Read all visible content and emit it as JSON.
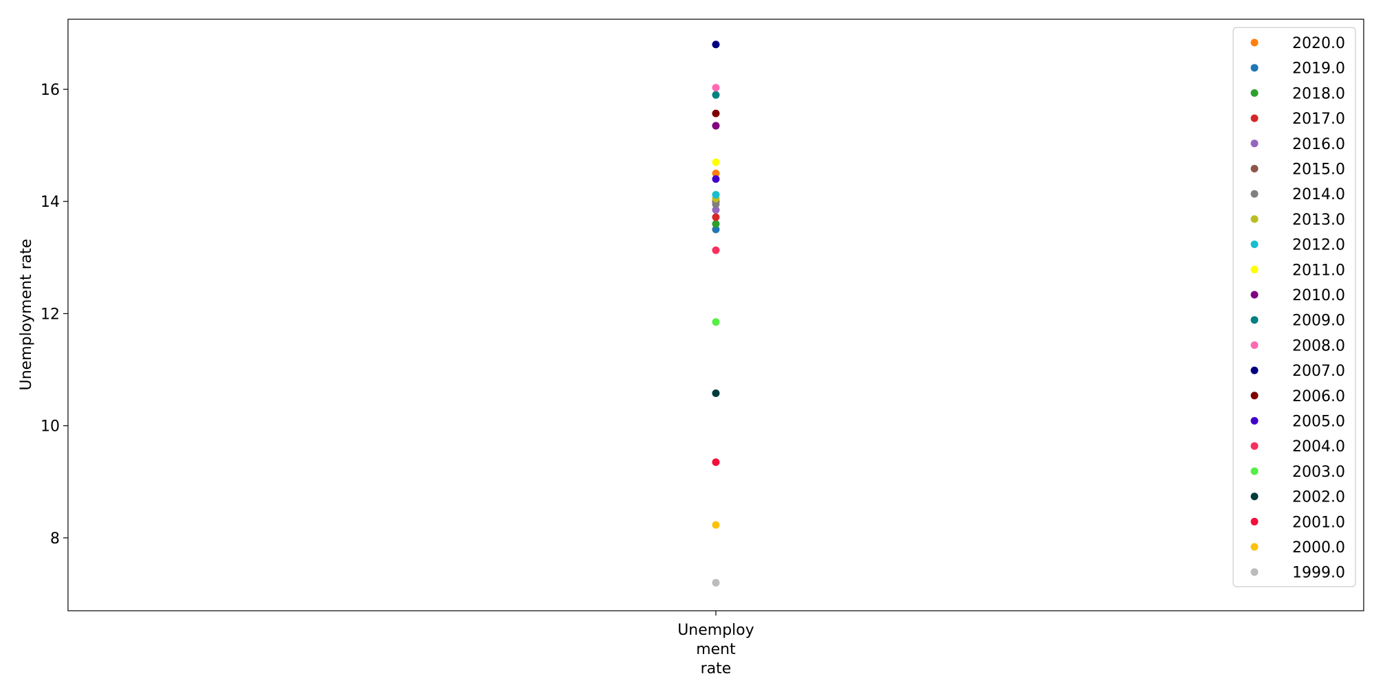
{
  "chart_data": {
    "type": "scatter",
    "title": "",
    "xlabel": "",
    "ylabel": "Unemployment rate",
    "categories": [
      "Unemploy\nment\nrate"
    ],
    "ylim": [
      6.7,
      17.25
    ],
    "yticks": [
      8,
      10,
      12,
      14,
      16
    ],
    "grid": false,
    "legend_position": "top-right",
    "series": [
      {
        "name": "2020.0",
        "color": "#ff7f0e",
        "values": [
          14.5
        ]
      },
      {
        "name": "2019.0",
        "color": "#1f77b4",
        "values": [
          13.5
        ]
      },
      {
        "name": "2018.0",
        "color": "#2ca02c",
        "values": [
          13.6
        ]
      },
      {
        "name": "2017.0",
        "color": "#d62728",
        "values": [
          13.72
        ]
      },
      {
        "name": "2016.0",
        "color": "#9467bd",
        "values": [
          13.85
        ]
      },
      {
        "name": "2015.0",
        "color": "#8c564b",
        "values": [
          14.0
        ]
      },
      {
        "name": "2014.0",
        "color": "#7f7f7f",
        "values": [
          13.95
        ]
      },
      {
        "name": "2013.0",
        "color": "#bcbd22",
        "values": [
          14.05
        ]
      },
      {
        "name": "2012.0",
        "color": "#17becf",
        "values": [
          14.12
        ]
      },
      {
        "name": "2011.0",
        "color": "#ffff00",
        "values": [
          14.7
        ]
      },
      {
        "name": "2010.0",
        "color": "#800080",
        "values": [
          15.35
        ]
      },
      {
        "name": "2009.0",
        "color": "#008080",
        "values": [
          15.9
        ]
      },
      {
        "name": "2008.0",
        "color": "#ff69b4",
        "values": [
          16.03
        ]
      },
      {
        "name": "2007.0",
        "color": "#000080",
        "values": [
          16.8
        ]
      },
      {
        "name": "2006.0",
        "color": "#800000",
        "values": [
          15.57
        ]
      },
      {
        "name": "2005.0",
        "color": "#4000cc",
        "values": [
          14.4
        ]
      },
      {
        "name": "2004.0",
        "color": "#f72f5e",
        "values": [
          13.13
        ]
      },
      {
        "name": "2003.0",
        "color": "#55ee44",
        "values": [
          11.85
        ]
      },
      {
        "name": "2002.0",
        "color": "#003c3c",
        "values": [
          10.58
        ]
      },
      {
        "name": "2001.0",
        "color": "#f20f3a",
        "values": [
          9.35
        ]
      },
      {
        "name": "2000.0",
        "color": "#fcc20c",
        "values": [
          8.23
        ]
      },
      {
        "name": "1999.0",
        "color": "#bcbcbc",
        "values": [
          7.2
        ]
      }
    ]
  }
}
